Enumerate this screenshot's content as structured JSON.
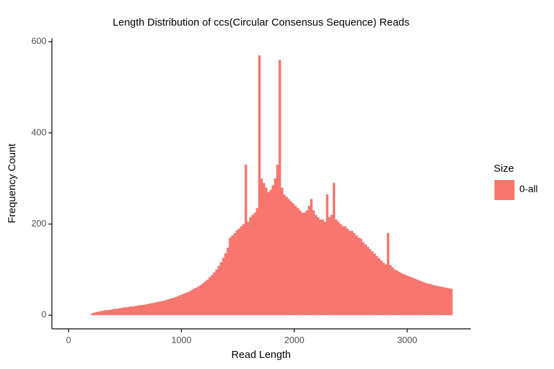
{
  "chart_data": {
    "type": "histogram",
    "title": "Length Distribution of ccs(Circular Consensus Sequence) Reads",
    "x_label": "Read Length",
    "y_label": "Frequency Count",
    "legend_title": "Size",
    "series": [
      {
        "name": "0-all",
        "color": "#f8766d",
        "bins": [
          200,
          220,
          240,
          260,
          280,
          300,
          320,
          340,
          360,
          380,
          400,
          420,
          440,
          460,
          480,
          500,
          520,
          540,
          560,
          580,
          600,
          620,
          640,
          660,
          680,
          700,
          720,
          740,
          760,
          780,
          800,
          820,
          840,
          860,
          880,
          900,
          920,
          940,
          960,
          980,
          1000,
          1020,
          1040,
          1060,
          1080,
          1100,
          1120,
          1140,
          1160,
          1180,
          1200,
          1220,
          1240,
          1260,
          1280,
          1300,
          1320,
          1340,
          1360,
          1380,
          1400,
          1420,
          1440,
          1460,
          1480,
          1500,
          1520,
          1540,
          1560,
          1580,
          1600,
          1620,
          1640,
          1660,
          1680,
          1700,
          1720,
          1740,
          1760,
          1780,
          1800,
          1820,
          1840,
          1860,
          1880,
          1900,
          1920,
          1940,
          1960,
          1980,
          2000,
          2020,
          2040,
          2060,
          2080,
          2100,
          2120,
          2140,
          2160,
          2180,
          2200,
          2220,
          2240,
          2260,
          2280,
          2300,
          2320,
          2340,
          2360,
          2380,
          2400,
          2420,
          2440,
          2460,
          2480,
          2500,
          2520,
          2540,
          2560,
          2580,
          2600,
          2620,
          2640,
          2660,
          2680,
          2700,
          2720,
          2740,
          2760,
          2780,
          2800,
          2820,
          2840,
          2860,
          2880,
          2900,
          2920,
          2940,
          2960,
          2980,
          3000,
          3020,
          3040,
          3060,
          3080,
          3100,
          3120,
          3140,
          3160,
          3180,
          3200,
          3220,
          3240,
          3260,
          3280,
          3300,
          3320,
          3340,
          3360,
          3380,
          3400
        ],
        "values": [
          4,
          6,
          7,
          8,
          9,
          10,
          11,
          11,
          12,
          13,
          14,
          14,
          15,
          16,
          17,
          17,
          18,
          19,
          19,
          20,
          21,
          22,
          22,
          23,
          24,
          25,
          26,
          27,
          28,
          29,
          30,
          31,
          32,
          34,
          35,
          37,
          38,
          40,
          42,
          44,
          46,
          48,
          50,
          52,
          55,
          58,
          60,
          63,
          66,
          70,
          74,
          78,
          83,
          88,
          94,
          100,
          108,
          116,
          126,
          136,
          148,
          170,
          175,
          180,
          186,
          190,
          195,
          200,
          330,
          205,
          215,
          220,
          225,
          235,
          570,
          300,
          290,
          280,
          270,
          275,
          285,
          300,
          330,
          560,
          280,
          265,
          260,
          255,
          250,
          245,
          240,
          235,
          230,
          225,
          225,
          230,
          240,
          255,
          230,
          220,
          215,
          210,
          210,
          205,
          265,
          215,
          220,
          290,
          210,
          205,
          200,
          195,
          195,
          190,
          185,
          185,
          180,
          175,
          170,
          168,
          160,
          155,
          150,
          145,
          140,
          135,
          130,
          125,
          120,
          115,
          112,
          180,
          110,
          105,
          100,
          98,
          95,
          92,
          90,
          88,
          86,
          84,
          82,
          80,
          78,
          76,
          74,
          72,
          70,
          69,
          68,
          66,
          65,
          64,
          63,
          62,
          61,
          60,
          59,
          58
        ]
      }
    ],
    "xlim": [
      -147,
      3564
    ],
    "xticks": [
      0,
      1000,
      2000,
      3000
    ],
    "ylim": [
      -30,
      608
    ],
    "yticks": [
      0,
      200,
      400,
      600
    ]
  }
}
